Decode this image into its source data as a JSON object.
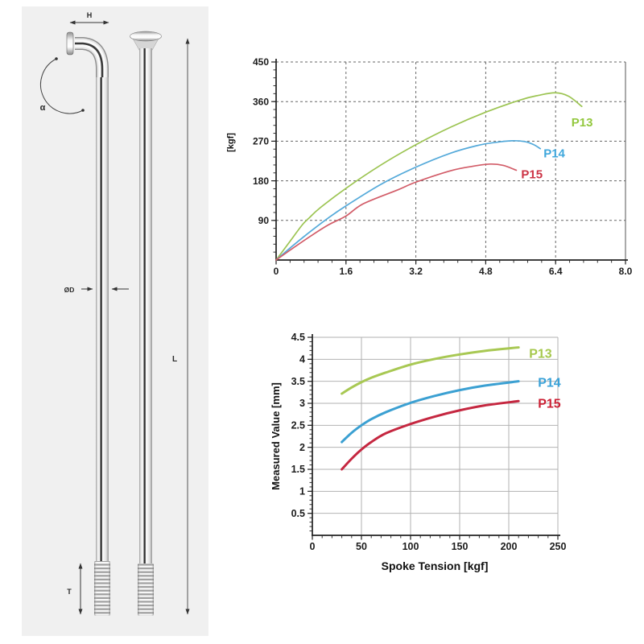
{
  "page": {
    "background": "#ffffff",
    "panel_background": "#f0f0f0"
  },
  "diagram": {
    "labels": {
      "height": "H",
      "angle": "α",
      "diameter": "ØD",
      "length": "L",
      "thread_length": "T"
    }
  },
  "chart_data": [
    {
      "type": "line",
      "title": "",
      "xlabel": "",
      "ylabel": "[kgf]",
      "xlim": [
        0,
        8.0
      ],
      "ylim": [
        0,
        450
      ],
      "xtick_values": [
        0,
        1.6,
        3.2,
        4.8,
        6.4,
        8.0
      ],
      "xtick_labels": [
        "0",
        "1.6",
        "3.2",
        "4.8",
        "6.4",
        "8.0"
      ],
      "ytick_values": [
        90,
        180,
        270,
        360,
        450
      ],
      "ytick_labels": [
        "90",
        "180",
        "270",
        "360",
        "450"
      ],
      "x_minor_step": 0.32,
      "y_minor_step": 18,
      "grid_style": "dashed",
      "grid_color": "#666666",
      "legend_position": "inline-right",
      "series": [
        {
          "name": "P13",
          "color": "#9cc452",
          "label_color": "#93c83e",
          "points": [
            [
              0,
              0
            ],
            [
              0.3,
              40
            ],
            [
              0.6,
              80
            ],
            [
              0.75,
              95
            ],
            [
              1.0,
              118
            ],
            [
              1.6,
              163
            ],
            [
              2.4,
              216
            ],
            [
              3.2,
              262
            ],
            [
              4.0,
              302
            ],
            [
              4.8,
              336
            ],
            [
              5.6,
              364
            ],
            [
              6.0,
              374
            ],
            [
              6.4,
              380
            ],
            [
              6.7,
              372
            ],
            [
              7.0,
              349
            ]
          ]
        },
        {
          "name": "P14",
          "color": "#55aada",
          "label_color": "#3fa7dc",
          "points": [
            [
              0,
              0
            ],
            [
              0.4,
              34
            ],
            [
              0.8,
              66
            ],
            [
              1.2,
              96
            ],
            [
              1.6,
              123
            ],
            [
              2.4,
              172
            ],
            [
              3.2,
              211
            ],
            [
              4.0,
              243
            ],
            [
              4.6,
              260
            ],
            [
              5.0,
              267
            ],
            [
              5.4,
              271
            ],
            [
              5.7,
              269
            ],
            [
              5.9,
              262
            ],
            [
              6.05,
              253
            ]
          ]
        },
        {
          "name": "P15",
          "color": "#d25c68",
          "label_color": "#cc3345",
          "points": [
            [
              0,
              0
            ],
            [
              0.4,
              28
            ],
            [
              0.8,
              55
            ],
            [
              1.2,
              80
            ],
            [
              1.6,
              100
            ],
            [
              2.0,
              128
            ],
            [
              2.8,
              160
            ],
            [
              3.2,
              177
            ],
            [
              4.0,
              203
            ],
            [
              4.5,
              213
            ],
            [
              4.9,
              218
            ],
            [
              5.2,
              215
            ],
            [
              5.5,
              204
            ]
          ]
        }
      ]
    },
    {
      "type": "line",
      "title": "",
      "xlabel": "Spoke Tension [kgf]",
      "ylabel": "Measured Value [mm]",
      "xlim": [
        0,
        250
      ],
      "ylim": [
        0,
        4.5
      ],
      "xtick_values": [
        0,
        50,
        100,
        150,
        200,
        250
      ],
      "xtick_labels": [
        "0",
        "50",
        "100",
        "150",
        "200",
        "250"
      ],
      "ytick_values": [
        0.5,
        1,
        1.5,
        2,
        2.5,
        3,
        3.5,
        4,
        4.5
      ],
      "ytick_labels": [
        "0.5",
        "1",
        "1.5",
        "2",
        "2.5",
        "3",
        "3.5",
        "4",
        "4.5"
      ],
      "x_minor_step": 10,
      "y_minor_step": 0.1,
      "grid_style": "solid",
      "grid_color": "#b2b2b2",
      "legend_position": "inline-right",
      "series": [
        {
          "name": "P13",
          "color": "#a8c853",
          "label_color": "#a6c84e",
          "points": [
            [
              30,
              3.22
            ],
            [
              40,
              3.36
            ],
            [
              50,
              3.48
            ],
            [
              60,
              3.58
            ],
            [
              75,
              3.7
            ],
            [
              100,
              3.88
            ],
            [
              125,
              4.01
            ],
            [
              150,
              4.11
            ],
            [
              175,
              4.19
            ],
            [
              210,
              4.27
            ]
          ]
        },
        {
          "name": "P14",
          "color": "#3ba0d2",
          "label_color": "#3aa2d8",
          "points": [
            [
              30,
              2.12
            ],
            [
              40,
              2.33
            ],
            [
              50,
              2.5
            ],
            [
              60,
              2.64
            ],
            [
              75,
              2.8
            ],
            [
              100,
              3.01
            ],
            [
              125,
              3.17
            ],
            [
              150,
              3.3
            ],
            [
              175,
              3.4
            ],
            [
              210,
              3.5
            ]
          ]
        },
        {
          "name": "P15",
          "color": "#c52740",
          "label_color": "#cc2135",
          "points": [
            [
              30,
              1.5
            ],
            [
              40,
              1.74
            ],
            [
              50,
              1.95
            ],
            [
              60,
              2.12
            ],
            [
              75,
              2.32
            ],
            [
              100,
              2.53
            ],
            [
              125,
              2.7
            ],
            [
              150,
              2.84
            ],
            [
              175,
              2.95
            ],
            [
              210,
              3.05
            ]
          ]
        }
      ]
    }
  ]
}
